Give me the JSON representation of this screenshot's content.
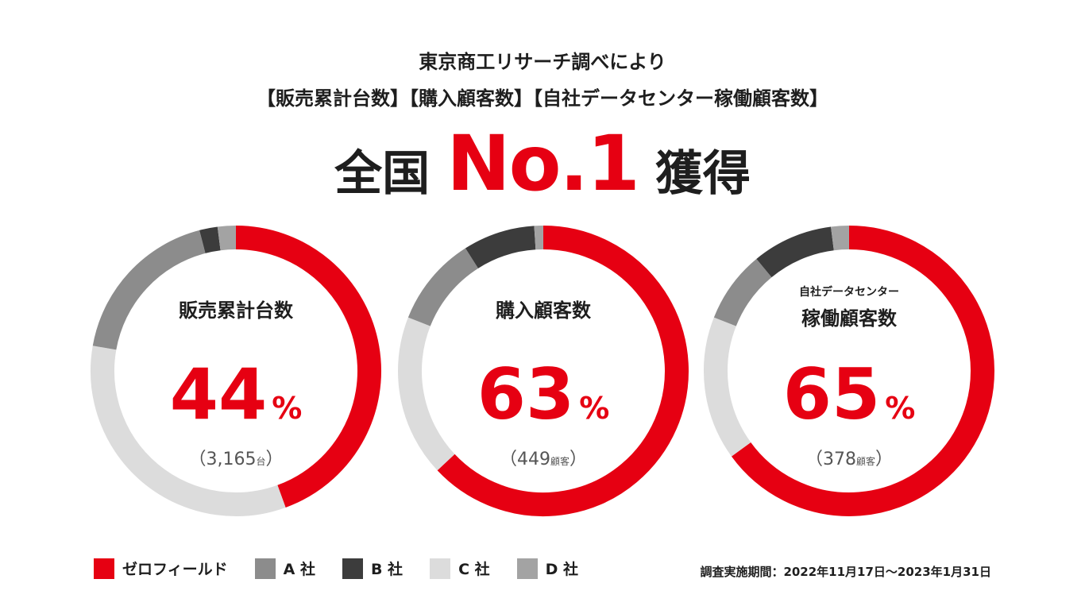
{
  "header": {
    "line1": "東京商工リサーチ調べにより",
    "line2": "【販売累計台数】【購入顧客数】【自社データセンター稼働顧客数】",
    "headline_before": "全国",
    "headline_highlight": "No.1",
    "headline_after": "獲得"
  },
  "colors": {
    "zerofield": "#e60012",
    "a": "#8c8c8c",
    "b": "#3c3c3c",
    "c": "#dcdcdc",
    "d": "#a3a3a3"
  },
  "chart_data": [
    {
      "type": "pie",
      "donut": true,
      "label_small": "",
      "label_main": "販売累計台数",
      "highlight_percent": "44",
      "percent_sign": "%",
      "count_open": "（",
      "count_value": "3,165",
      "count_unit": "台",
      "count_close": "）",
      "segments": [
        {
          "name": "ゼロフィールド",
          "value": 44,
          "color": "#e60012"
        },
        {
          "name": "C 社",
          "value": 33,
          "color": "#dcdcdc"
        },
        {
          "name": "A 社",
          "value": 18,
          "color": "#8c8c8c"
        },
        {
          "name": "B 社",
          "value": 2,
          "color": "#3c3c3c"
        },
        {
          "name": "D 社",
          "value": 2,
          "color": "#a3a3a3"
        }
      ]
    },
    {
      "type": "pie",
      "donut": true,
      "label_small": "",
      "label_main": "購入顧客数",
      "highlight_percent": "63",
      "percent_sign": "%",
      "count_open": "（",
      "count_value": "449",
      "count_unit": "顧客",
      "count_close": "）",
      "segments": [
        {
          "name": "ゼロフィールド",
          "value": 63,
          "color": "#e60012"
        },
        {
          "name": "C 社",
          "value": 18,
          "color": "#dcdcdc"
        },
        {
          "name": "A 社",
          "value": 10,
          "color": "#8c8c8c"
        },
        {
          "name": "B 社",
          "value": 8,
          "color": "#3c3c3c"
        },
        {
          "name": "D 社",
          "value": 1,
          "color": "#a3a3a3"
        }
      ]
    },
    {
      "type": "pie",
      "donut": true,
      "label_small": "自社データセンター",
      "label_main": "稼働顧客数",
      "highlight_percent": "65",
      "percent_sign": "%",
      "count_open": "（",
      "count_value": "378",
      "count_unit": "顧客",
      "count_close": "）",
      "segments": [
        {
          "name": "ゼロフィールド",
          "value": 65,
          "color": "#e60012"
        },
        {
          "name": "C 社",
          "value": 16,
          "color": "#dcdcdc"
        },
        {
          "name": "A 社",
          "value": 8,
          "color": "#8c8c8c"
        },
        {
          "name": "B 社",
          "value": 9,
          "color": "#3c3c3c"
        },
        {
          "name": "D 社",
          "value": 2,
          "color": "#a3a3a3"
        }
      ]
    }
  ],
  "legend": [
    {
      "label": "ゼロフィールド",
      "color": "#e60012"
    },
    {
      "label": "A 社",
      "color": "#8c8c8c"
    },
    {
      "label": "B 社",
      "color": "#3c3c3c"
    },
    {
      "label": "C 社",
      "color": "#dcdcdc"
    },
    {
      "label": "D 社",
      "color": "#a3a3a3"
    }
  ],
  "note": "調査実施期間：2022年11月17日〜2023年1月31日"
}
